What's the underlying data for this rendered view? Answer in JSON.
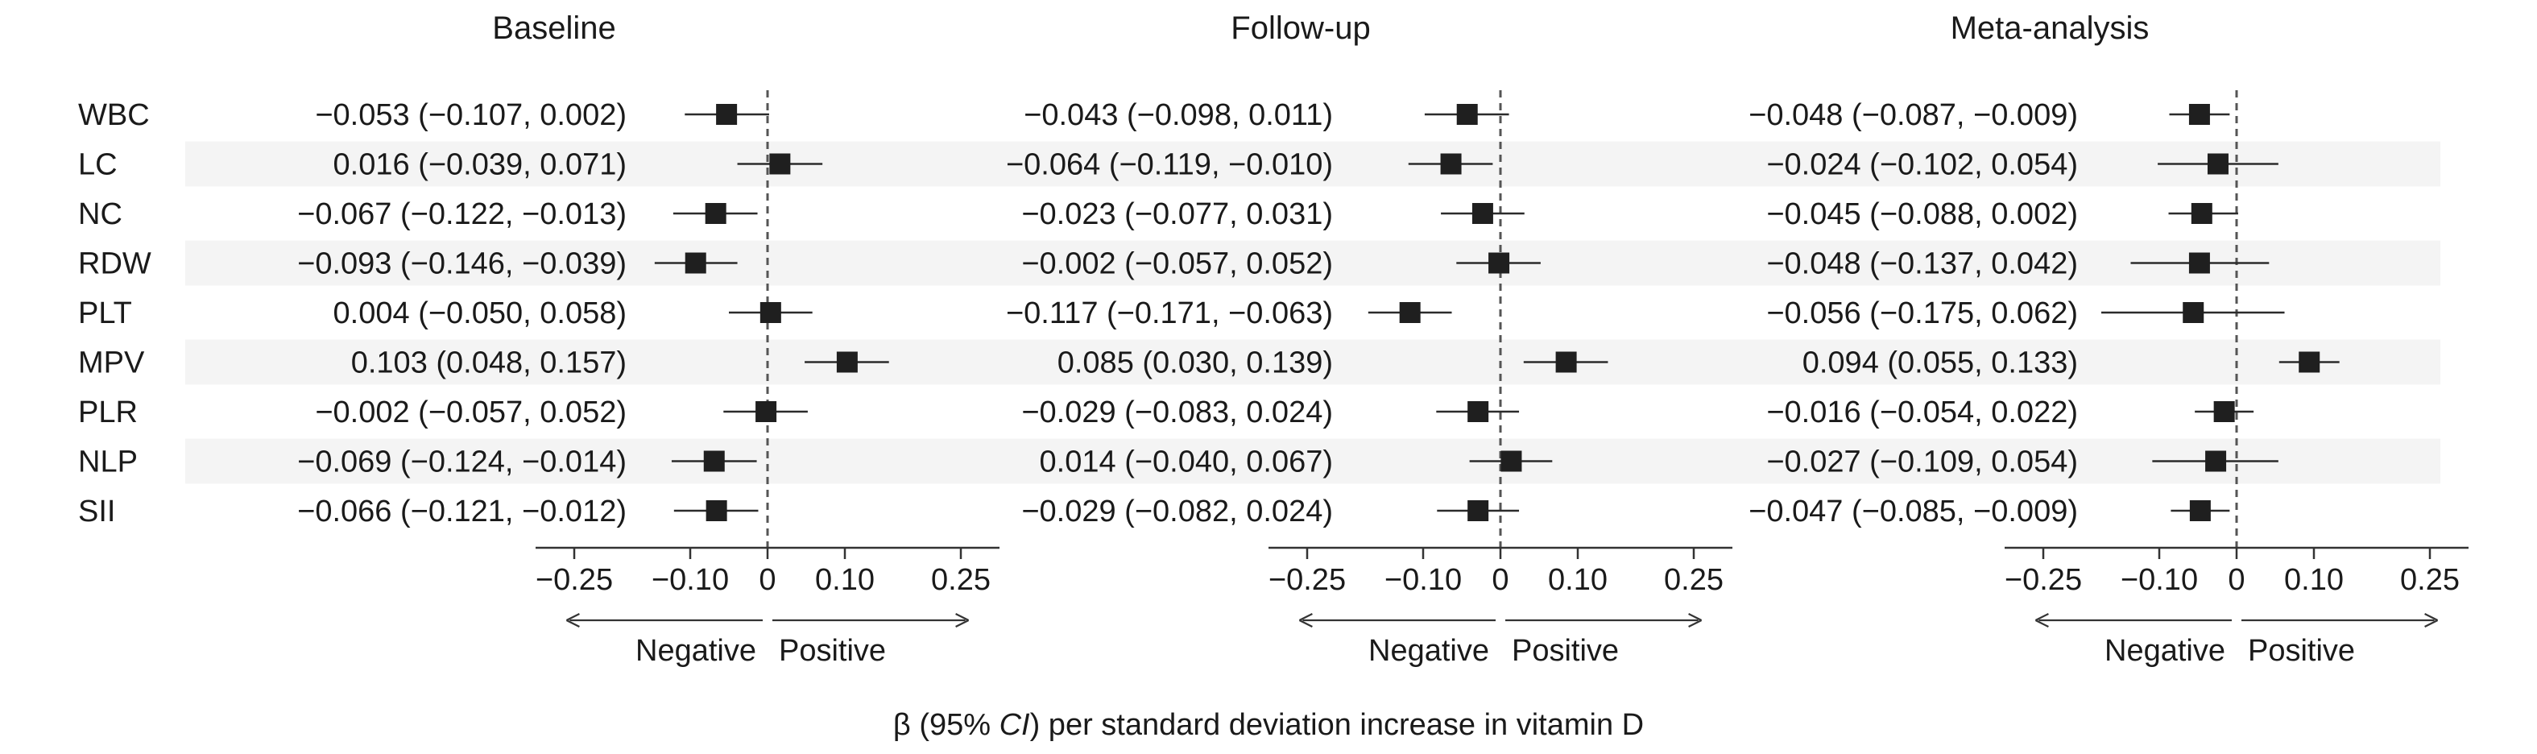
{
  "chart_data": {
    "type": "forest",
    "row_labels": [
      "WBC",
      "LC",
      "NC",
      "RDW",
      "PLT",
      "MPV",
      "PLR",
      "NLP",
      "SII"
    ],
    "xlim": [
      -0.3,
      0.3
    ],
    "x_ticks": [
      -0.25,
      -0.1,
      0,
      0.1,
      0.25
    ],
    "x_tick_labels": [
      "−0.25",
      "−0.10",
      "0",
      "0.10",
      "0.25"
    ],
    "direction_labels": {
      "negative": "Negative",
      "positive": "Positive"
    },
    "footnote": {
      "prefix": "β (95% ",
      "italic": "CI",
      "suffix": ") per standard deviation increase in vitamin D"
    },
    "panels": [
      {
        "title": "Baseline",
        "estimates": [
          -0.053,
          0.016,
          -0.067,
          -0.093,
          0.004,
          0.103,
          -0.002,
          -0.069,
          -0.066
        ],
        "lower": [
          -0.107,
          -0.039,
          -0.122,
          -0.146,
          -0.05,
          0.048,
          -0.057,
          -0.124,
          -0.121
        ],
        "upper": [
          0.002,
          0.071,
          -0.013,
          -0.039,
          0.058,
          0.157,
          0.052,
          -0.014,
          -0.012
        ],
        "ci_text": [
          "−0.053 (−0.107, 0.002)",
          "0.016 (−0.039, 0.071)",
          "−0.067 (−0.122, −0.013)",
          "−0.093 (−0.146, −0.039)",
          "0.004 (−0.050, 0.058)",
          "0.103 (0.048, 0.157)",
          "−0.002 (−0.057, 0.052)",
          "−0.069 (−0.124, −0.014)",
          "−0.066 (−0.121, −0.012)"
        ]
      },
      {
        "title": "Follow-up",
        "estimates": [
          -0.043,
          -0.064,
          -0.023,
          -0.002,
          -0.117,
          0.085,
          -0.029,
          0.014,
          -0.029
        ],
        "lower": [
          -0.098,
          -0.119,
          -0.077,
          -0.057,
          -0.171,
          0.03,
          -0.083,
          -0.04,
          -0.082
        ],
        "upper": [
          0.011,
          -0.01,
          0.031,
          0.052,
          -0.063,
          0.139,
          0.024,
          0.067,
          0.024
        ],
        "ci_text": [
          "−0.043 (−0.098, 0.011)",
          "−0.064 (−0.119, −0.010)",
          "−0.023 (−0.077, 0.031)",
          "−0.002 (−0.057, 0.052)",
          "−0.117 (−0.171, −0.063)",
          "0.085 (0.030, 0.139)",
          "−0.029 (−0.083, 0.024)",
          "0.014 (−0.040, 0.067)",
          "−0.029 (−0.082, 0.024)"
        ]
      },
      {
        "title": "Meta-analysis",
        "estimates": [
          -0.048,
          -0.024,
          -0.045,
          -0.048,
          -0.056,
          0.094,
          -0.016,
          -0.027,
          -0.047
        ],
        "lower": [
          -0.087,
          -0.102,
          -0.088,
          -0.137,
          -0.175,
          0.055,
          -0.054,
          -0.109,
          -0.085
        ],
        "upper": [
          -0.009,
          0.054,
          0.002,
          0.042,
          0.062,
          0.133,
          0.022,
          0.054,
          -0.009
        ],
        "ci_text": [
          "−0.048 (−0.087, −0.009)",
          "−0.024 (−0.102, 0.054)",
          "−0.045 (−0.088, 0.002)",
          "−0.048 (−0.137, 0.042)",
          "−0.056 (−0.175, 0.062)",
          "0.094 (0.055, 0.133)",
          "−0.016 (−0.054, 0.022)",
          "−0.027 (−0.109, 0.054)",
          "−0.047 (−0.085, −0.009)"
        ]
      }
    ]
  }
}
